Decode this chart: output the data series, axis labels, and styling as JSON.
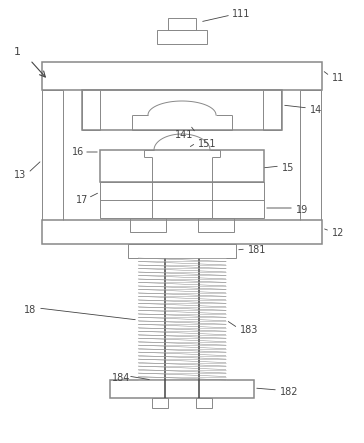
{
  "bg_color": "#ffffff",
  "line_color": "#b0b0b0",
  "dark_line": "#444444",
  "med_line": "#888888",
  "label_color": "#444444",
  "fig_width": 3.64,
  "fig_height": 4.43,
  "dpi": 100
}
